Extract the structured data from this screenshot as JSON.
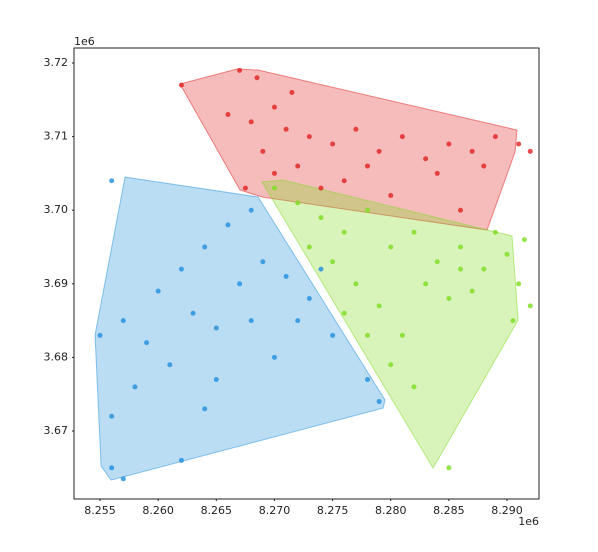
{
  "chart_data": {
    "type": "scatter",
    "x_offset_label": "1e6",
    "y_offset_label": "1e6",
    "xlim": [
      8252760,
      8292750
    ],
    "ylim": [
      3660760,
      3722040
    ],
    "xticks": [
      {
        "value": 8255000,
        "label": "8.255"
      },
      {
        "value": 8260000,
        "label": "8.260"
      },
      {
        "value": 8265000,
        "label": "8.265"
      },
      {
        "value": 8270000,
        "label": "8.270"
      },
      {
        "value": 8275000,
        "label": "8.275"
      },
      {
        "value": 8280000,
        "label": "8.280"
      },
      {
        "value": 8285000,
        "label": "8.285"
      },
      {
        "value": 8290000,
        "label": "8.290"
      }
    ],
    "yticks": [
      {
        "value": 3670000,
        "label": "3.67"
      },
      {
        "value": 3680000,
        "label": "3.68"
      },
      {
        "value": 3690000,
        "label": "3.69"
      },
      {
        "value": 3700000,
        "label": "3.70"
      },
      {
        "value": 3710000,
        "label": "3.71"
      },
      {
        "value": 3720000,
        "label": "3.72"
      }
    ],
    "series": [
      {
        "color": "#e0201f",
        "hull_x": [
          8261880,
          8266780,
          8268590,
          8290860,
          8290690,
          8288280,
          8268930,
          8267040
        ],
        "hull_y": [
          3717146,
          3719185,
          3719049,
          3710896,
          3707906,
          3697307,
          3701791,
          3702741
        ],
        "x": [
          8262000,
          8267000,
          8268500,
          8266000,
          8268000,
          8270000,
          8271000,
          8273000,
          8275000,
          8277000,
          8279000,
          8281000,
          8283000,
          8285000,
          8287000,
          8289000,
          8291000,
          8292000,
          8270000,
          8272000,
          8274000,
          8276000,
          8278000,
          8280000,
          8269000,
          8271500,
          8267500,
          8284000,
          8288000,
          8286000
        ],
        "y": [
          3717000,
          3719000,
          3718000,
          3713000,
          3712000,
          3714000,
          3711000,
          3710000,
          3709000,
          3711000,
          3708000,
          3710000,
          3707000,
          3709000,
          3708000,
          3710000,
          3709000,
          3708000,
          3705000,
          3706000,
          3703000,
          3704000,
          3706000,
          3702000,
          3708000,
          3716000,
          3703000,
          3705000,
          3706000,
          3700000
        ]
      },
      {
        "color": "#1f8fdc",
        "hull_x": [
          8257150,
          8268590,
          8279510,
          8279340,
          8255950,
          8255090,
          8254570
        ],
        "hull_y": [
          3704508,
          3701791,
          3674204,
          3673117,
          3663335,
          3665237,
          3683040
        ],
        "x": [
          8256000,
          8255000,
          8257000,
          8259000,
          8260000,
          8262000,
          8264000,
          8266000,
          8268000,
          8267000,
          8269000,
          8271000,
          8273000,
          8263000,
          8265000,
          8261000,
          8258000,
          8256000,
          8256000,
          8262000,
          8264000,
          8270000,
          8275000,
          8278000,
          8279000,
          8272000,
          8257000,
          8265000,
          8268000,
          8274000
        ],
        "y": [
          3704000,
          3683000,
          3685000,
          3682000,
          3689000,
          3692000,
          3695000,
          3698000,
          3700000,
          3690000,
          3693000,
          3691000,
          3688000,
          3686000,
          3684000,
          3679000,
          3676000,
          3672000,
          3665000,
          3666000,
          3673000,
          3680000,
          3683000,
          3677000,
          3674000,
          3685000,
          3663500,
          3677000,
          3685000,
          3692000
        ]
      },
      {
        "color": "#7ddc1f",
        "hull_x": [
          8268930,
          8270740,
          8290430,
          8290950,
          8283640
        ],
        "hull_y": [
          3703829,
          3704100,
          3696490,
          3685076,
          3664965
        ],
        "x": [
          8270000,
          8272000,
          8274000,
          8276000,
          8278000,
          8280000,
          8282000,
          8284000,
          8286000,
          8288000,
          8290000,
          8291000,
          8292000,
          8290500,
          8277000,
          8279000,
          8281000,
          8283000,
          8285000,
          8287000,
          8275000,
          8276000,
          8280000,
          8282000,
          8285000,
          8273000,
          8289000,
          8291500,
          8278000,
          8286000
        ],
        "y": [
          3703000,
          3701000,
          3699000,
          3697000,
          3700000,
          3695000,
          3697000,
          3693000,
          3695000,
          3692000,
          3694000,
          3690000,
          3687000,
          3685000,
          3690000,
          3687000,
          3683000,
          3690000,
          3688000,
          3689000,
          3693000,
          3686000,
          3679000,
          3676000,
          3665000,
          3695000,
          3697000,
          3696000,
          3683000,
          3692000
        ]
      }
    ]
  }
}
